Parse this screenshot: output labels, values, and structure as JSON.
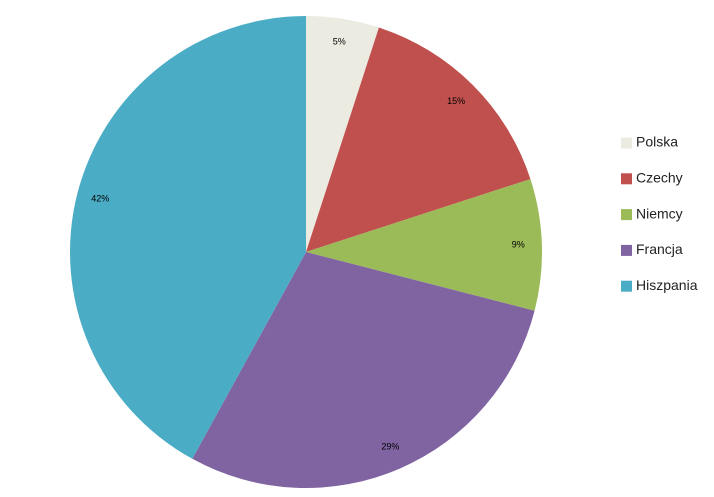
{
  "chart_data": {
    "type": "pie",
    "categories": [
      "Polska",
      "Czechy",
      "Niemcy",
      "Francja",
      "Hiszpania"
    ],
    "values": [
      5,
      15,
      9,
      29,
      42
    ],
    "value_labels": [
      "5%",
      "15%",
      "9%",
      "29%",
      "42%"
    ],
    "colors": [
      "#ecebe1",
      "#c0504d",
      "#9bbb59",
      "#8064a2",
      "#4bacc6"
    ],
    "legend": "right"
  }
}
